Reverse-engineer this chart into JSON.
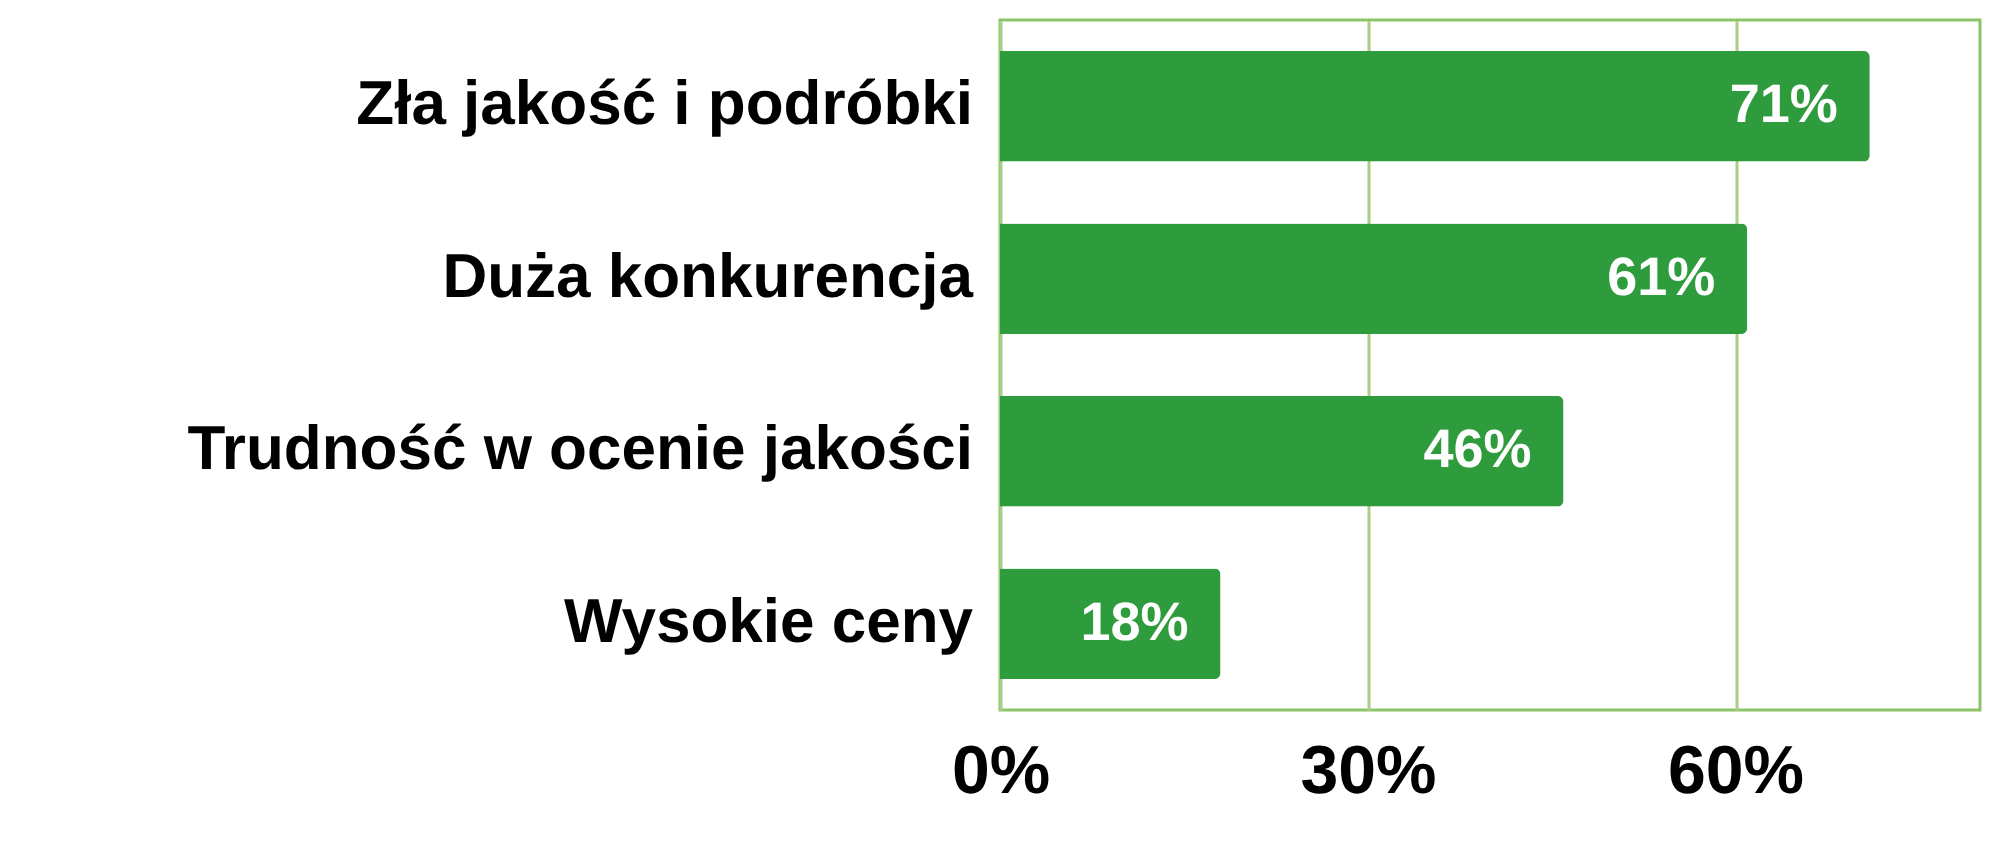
{
  "chart_data": {
    "type": "bar",
    "orientation": "horizontal",
    "categories": [
      "Zła jakość i podróbki",
      "Duża konkurencja",
      "Trudność w ocenie jakości",
      "Wysokie ceny"
    ],
    "values": [
      71,
      61,
      46,
      18
    ],
    "value_labels": [
      "71%",
      "61%",
      "46%",
      "18%"
    ],
    "color": "#2e9c3c",
    "xlim": [
      0,
      80
    ],
    "xticks": [
      {
        "value": 0,
        "label": "0%"
      },
      {
        "value": 30,
        "label": "30%"
      },
      {
        "value": 60,
        "label": "60%"
      }
    ],
    "grid": "x"
  }
}
